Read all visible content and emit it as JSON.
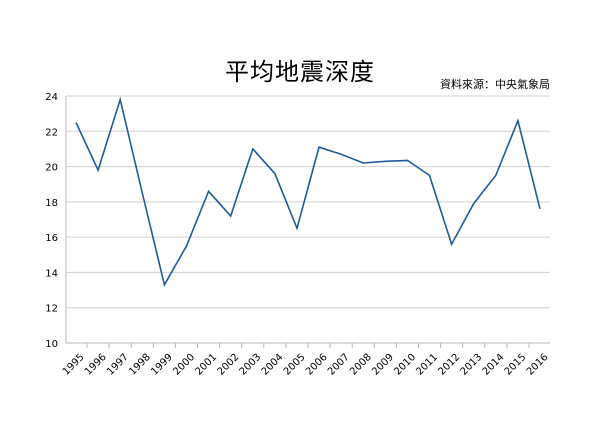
{
  "chart_data": {
    "type": "line",
    "title": "平均地震深度",
    "source_note": "資料來源：中央氣象局",
    "xlabel": "",
    "ylabel": "",
    "ylim": [
      10,
      24
    ],
    "yticks": [
      10,
      12,
      14,
      16,
      18,
      20,
      22,
      24
    ],
    "grid": true,
    "legend": "none",
    "categories": [
      "1995",
      "1996",
      "1997",
      "1998",
      "1999",
      "2000",
      "2001",
      "2002",
      "2003",
      "2004",
      "2005",
      "2006",
      "2007",
      "2008",
      "2009",
      "2010",
      "2011",
      "2012",
      "2013",
      "2014",
      "2015",
      "2016"
    ],
    "series": [
      {
        "values": [
          22.5,
          19.8,
          23.8,
          18.5,
          13.3,
          15.5,
          18.6,
          17.2,
          21.0,
          19.6,
          16.5,
          21.1,
          20.7,
          20.2,
          20.3,
          20.35,
          19.5,
          15.6,
          17.9,
          19.5,
          22.6,
          17.6
        ],
        "color": "#1f5b99"
      }
    ],
    "colors": {
      "grid": "#d0d0d0",
      "axis": "#b8b8b8",
      "line": "#1f5b99",
      "text": "#000000"
    }
  }
}
